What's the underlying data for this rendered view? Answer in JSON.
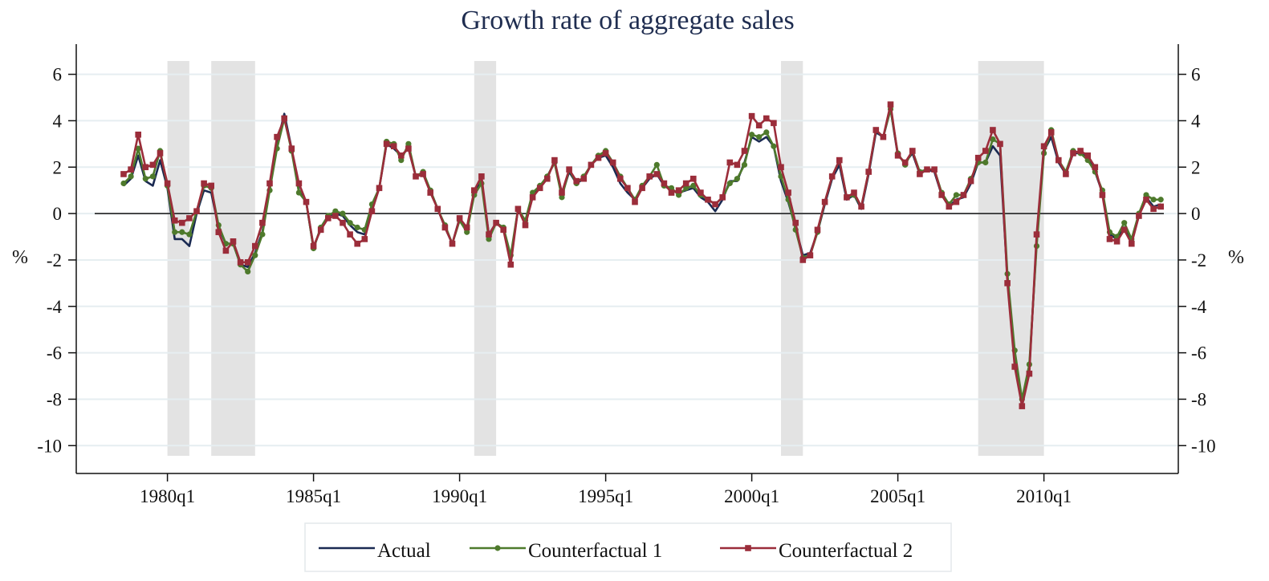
{
  "chart_data": {
    "type": "line",
    "title": "Growth rate of aggregate sales",
    "ylabel": "%",
    "y2label": "%",
    "x": [
      "1978q3",
      "1978q4",
      "1979q1",
      "1979q2",
      "1979q3",
      "1979q4",
      "1980q1",
      "1980q2",
      "1980q3",
      "1980q4",
      "1981q1",
      "1981q2",
      "1981q3",
      "1981q4",
      "1982q1",
      "1982q2",
      "1982q3",
      "1982q4",
      "1983q1",
      "1983q2",
      "1983q3",
      "1983q4",
      "1984q1",
      "1984q2",
      "1984q3",
      "1984q4",
      "1985q1",
      "1985q2",
      "1985q3",
      "1985q4",
      "1986q1",
      "1986q2",
      "1986q3",
      "1986q4",
      "1987q1",
      "1987q2",
      "1987q3",
      "1987q4",
      "1988q1",
      "1988q2",
      "1988q3",
      "1988q4",
      "1989q1",
      "1989q2",
      "1989q3",
      "1989q4",
      "1990q1",
      "1990q2",
      "1990q3",
      "1990q4",
      "1991q1",
      "1991q2",
      "1991q3",
      "1991q4",
      "1992q1",
      "1992q2",
      "1992q3",
      "1992q4",
      "1993q1",
      "1993q2",
      "1993q3",
      "1993q4",
      "1994q1",
      "1994q2",
      "1994q3",
      "1994q4",
      "1995q1",
      "1995q2",
      "1995q3",
      "1995q4",
      "1996q1",
      "1996q2",
      "1996q3",
      "1996q4",
      "1997q1",
      "1997q2",
      "1997q3",
      "1997q4",
      "1998q1",
      "1998q2",
      "1998q3",
      "1998q4",
      "1999q1",
      "1999q2",
      "1999q3",
      "1999q4",
      "2000q1",
      "2000q2",
      "2000q3",
      "2000q4",
      "2001q1",
      "2001q2",
      "2001q3",
      "2001q4",
      "2002q1",
      "2002q2",
      "2002q3",
      "2002q4",
      "2003q1",
      "2003q2",
      "2003q3",
      "2003q4",
      "2004q1",
      "2004q2",
      "2004q3",
      "2004q4",
      "2005q1",
      "2005q2",
      "2005q3",
      "2005q4",
      "2006q1",
      "2006q2",
      "2006q3",
      "2006q4",
      "2007q1",
      "2007q2",
      "2007q3",
      "2007q4",
      "2008q1",
      "2008q2",
      "2008q3",
      "2008q4",
      "2009q1",
      "2009q2",
      "2009q3",
      "2009q4",
      "2010q1",
      "2010q2",
      "2010q3",
      "2010q4",
      "2011q1",
      "2011q2",
      "2011q3",
      "2011q4",
      "2012q1",
      "2012q2",
      "2012q3",
      "2012q4",
      "2013q1",
      "2013q2",
      "2013q3",
      "2013q4",
      "2014q1"
    ],
    "xticks": [
      "1980q1",
      "1985q1",
      "1990q1",
      "1995q1",
      "2000q1",
      "2005q1",
      "2010q1"
    ],
    "shaded_periods": [
      {
        "start": "1980q1",
        "end": "1980q4"
      },
      {
        "start": "1981q3",
        "end": "1983q1"
      },
      {
        "start": "1990q3",
        "end": "1991q2"
      },
      {
        "start": "2001q1",
        "end": "2001q4"
      },
      {
        "start": "2007q4",
        "end": "2010q1"
      }
    ],
    "shade_color": "#e3e3e3",
    "ylim": [
      -11.2,
      7.3
    ],
    "yticks": [
      -10,
      -8,
      -6,
      -4,
      -2,
      0,
      2,
      4,
      6
    ],
    "y2lim": [
      -11.2,
      7.3
    ],
    "y2ticks": [
      -10,
      -8,
      -6,
      -4,
      -2,
      0,
      2,
      4,
      6
    ],
    "reference_line_y": 0,
    "grid": true,
    "legend": "bottom",
    "series": [
      {
        "name": "Actual",
        "color": "#1a2a52",
        "marker": "none",
        "values": [
          1.2,
          1.5,
          2.5,
          1.4,
          1.2,
          2.3,
          1.1,
          -1.1,
          -1.1,
          -1.4,
          0.0,
          1.0,
          0.9,
          -0.6,
          -1.3,
          -1.3,
          -2.2,
          -2.3,
          -1.7,
          -0.8,
          1.1,
          3.0,
          4.3,
          2.8,
          1.0,
          0.5,
          -1.5,
          -0.6,
          -0.1,
          0.0,
          -0.1,
          -0.5,
          -0.8,
          -0.9,
          0.2,
          1.1,
          3.0,
          2.8,
          2.5,
          2.8,
          1.6,
          1.7,
          1.0,
          0.2,
          -0.6,
          -1.3,
          -0.2,
          -0.7,
          0.9,
          1.4,
          -0.9,
          -0.4,
          -0.6,
          -2.0,
          0.2,
          -0.4,
          0.8,
          1.1,
          1.6,
          2.2,
          0.8,
          1.8,
          1.3,
          1.5,
          2.1,
          2.4,
          2.5,
          2.0,
          1.3,
          0.9,
          0.6,
          1.1,
          1.5,
          1.7,
          1.2,
          1.0,
          0.9,
          1.0,
          1.1,
          0.7,
          0.5,
          0.1,
          0.6,
          1.4,
          1.4,
          2.2,
          3.3,
          3.1,
          3.3,
          2.9,
          1.4,
          0.5,
          -0.6,
          -1.8,
          -1.7,
          -0.8,
          0.4,
          1.5,
          2.1,
          0.6,
          0.8,
          0.2,
          1.7,
          3.5,
          3.3,
          4.5,
          2.5,
          2.2,
          2.6,
          1.7,
          1.9,
          1.8,
          0.8,
          0.3,
          0.6,
          0.7,
          1.3,
          2.2,
          2.2,
          2.9,
          2.5,
          -2.8,
          -6.2,
          -8.2,
          -6.7,
          -1.2,
          2.7,
          3.3,
          2.2,
          1.7,
          2.6,
          2.6,
          2.4,
          1.8,
          0.9,
          -0.9,
          -1.1,
          -0.6,
          -1.2,
          -0.1,
          0.7,
          0.3,
          0.4
        ]
      },
      {
        "name": "Counterfactual 1",
        "color": "#4e7a2c",
        "marker": "circle",
        "values": [
          1.3,
          1.6,
          2.8,
          1.5,
          1.6,
          2.7,
          1.2,
          -0.8,
          -0.8,
          -0.9,
          0.1,
          1.2,
          1.1,
          -0.5,
          -1.3,
          -1.3,
          -2.2,
          -2.5,
          -1.8,
          -0.9,
          1.0,
          2.8,
          4.1,
          2.7,
          0.9,
          0.5,
          -1.5,
          -0.6,
          -0.1,
          0.1,
          0.0,
          -0.4,
          -0.6,
          -0.7,
          0.4,
          1.1,
          3.1,
          3.0,
          2.3,
          3.0,
          1.6,
          1.8,
          1.0,
          0.2,
          -0.5,
          -1.3,
          -0.3,
          -0.8,
          0.8,
          1.3,
          -1.1,
          -0.4,
          -0.6,
          -1.8,
          0.2,
          -0.3,
          0.9,
          1.2,
          1.6,
          2.2,
          0.7,
          1.9,
          1.3,
          1.6,
          2.1,
          2.5,
          2.7,
          2.2,
          1.6,
          1.1,
          0.6,
          1.2,
          1.6,
          2.1,
          1.2,
          1.1,
          0.8,
          1.1,
          1.2,
          0.8,
          0.6,
          0.4,
          0.7,
          1.3,
          1.5,
          2.1,
          3.4,
          3.3,
          3.5,
          2.9,
          1.6,
          0.6,
          -0.7,
          -1.9,
          -1.8,
          -0.8,
          0.5,
          1.6,
          2.3,
          0.7,
          0.8,
          0.3,
          1.8,
          3.6,
          3.3,
          4.5,
          2.6,
          2.1,
          2.7,
          1.8,
          1.9,
          1.9,
          0.9,
          0.4,
          0.8,
          0.8,
          1.5,
          2.2,
          2.2,
          3.2,
          3.0,
          -2.6,
          -5.9,
          -8.0,
          -6.5,
          -1.4,
          2.6,
          3.6,
          2.3,
          1.8,
          2.7,
          2.6,
          2.3,
          1.8,
          1.0,
          -0.8,
          -1.0,
          -0.4,
          -1.1,
          0.0,
          0.8,
          0.6,
          0.6
        ]
      },
      {
        "name": "Counterfactual 2",
        "color": "#9b2d3a",
        "marker": "square",
        "values": [
          1.7,
          1.9,
          3.4,
          2.0,
          2.1,
          2.6,
          1.3,
          -0.3,
          -0.4,
          -0.2,
          0.1,
          1.3,
          1.2,
          -0.8,
          -1.6,
          -1.2,
          -2.1,
          -2.1,
          -1.4,
          -0.4,
          1.3,
          3.3,
          4.1,
          2.8,
          1.3,
          0.5,
          -1.4,
          -0.7,
          -0.2,
          -0.1,
          -0.4,
          -0.9,
          -1.3,
          -1.1,
          0.1,
          1.1,
          3.0,
          2.9,
          2.5,
          2.8,
          1.6,
          1.7,
          0.9,
          0.2,
          -0.6,
          -1.3,
          -0.2,
          -0.6,
          1.0,
          1.6,
          -0.9,
          -0.4,
          -0.7,
          -2.2,
          0.2,
          -0.5,
          0.7,
          1.1,
          1.5,
          2.3,
          0.9,
          1.9,
          1.4,
          1.5,
          2.1,
          2.4,
          2.6,
          2.2,
          1.5,
          1.1,
          0.5,
          1.1,
          1.6,
          1.7,
          1.3,
          0.9,
          1.0,
          1.3,
          1.5,
          0.9,
          0.6,
          0.4,
          0.7,
          2.2,
          2.1,
          2.7,
          4.2,
          3.8,
          4.1,
          3.9,
          2.0,
          0.9,
          -0.4,
          -2.0,
          -1.8,
          -0.7,
          0.5,
          1.6,
          2.3,
          0.7,
          0.9,
          0.3,
          1.8,
          3.6,
          3.3,
          4.7,
          2.5,
          2.2,
          2.7,
          1.7,
          1.9,
          1.9,
          0.8,
          0.3,
          0.5,
          0.8,
          1.4,
          2.4,
          2.7,
          3.6,
          3.0,
          -3.0,
          -6.6,
          -8.3,
          -6.9,
          -0.9,
          2.9,
          3.5,
          2.3,
          1.7,
          2.6,
          2.7,
          2.5,
          2.0,
          0.8,
          -1.1,
          -1.2,
          -0.7,
          -1.3,
          -0.1,
          0.6,
          0.2,
          0.3
        ]
      }
    ]
  }
}
